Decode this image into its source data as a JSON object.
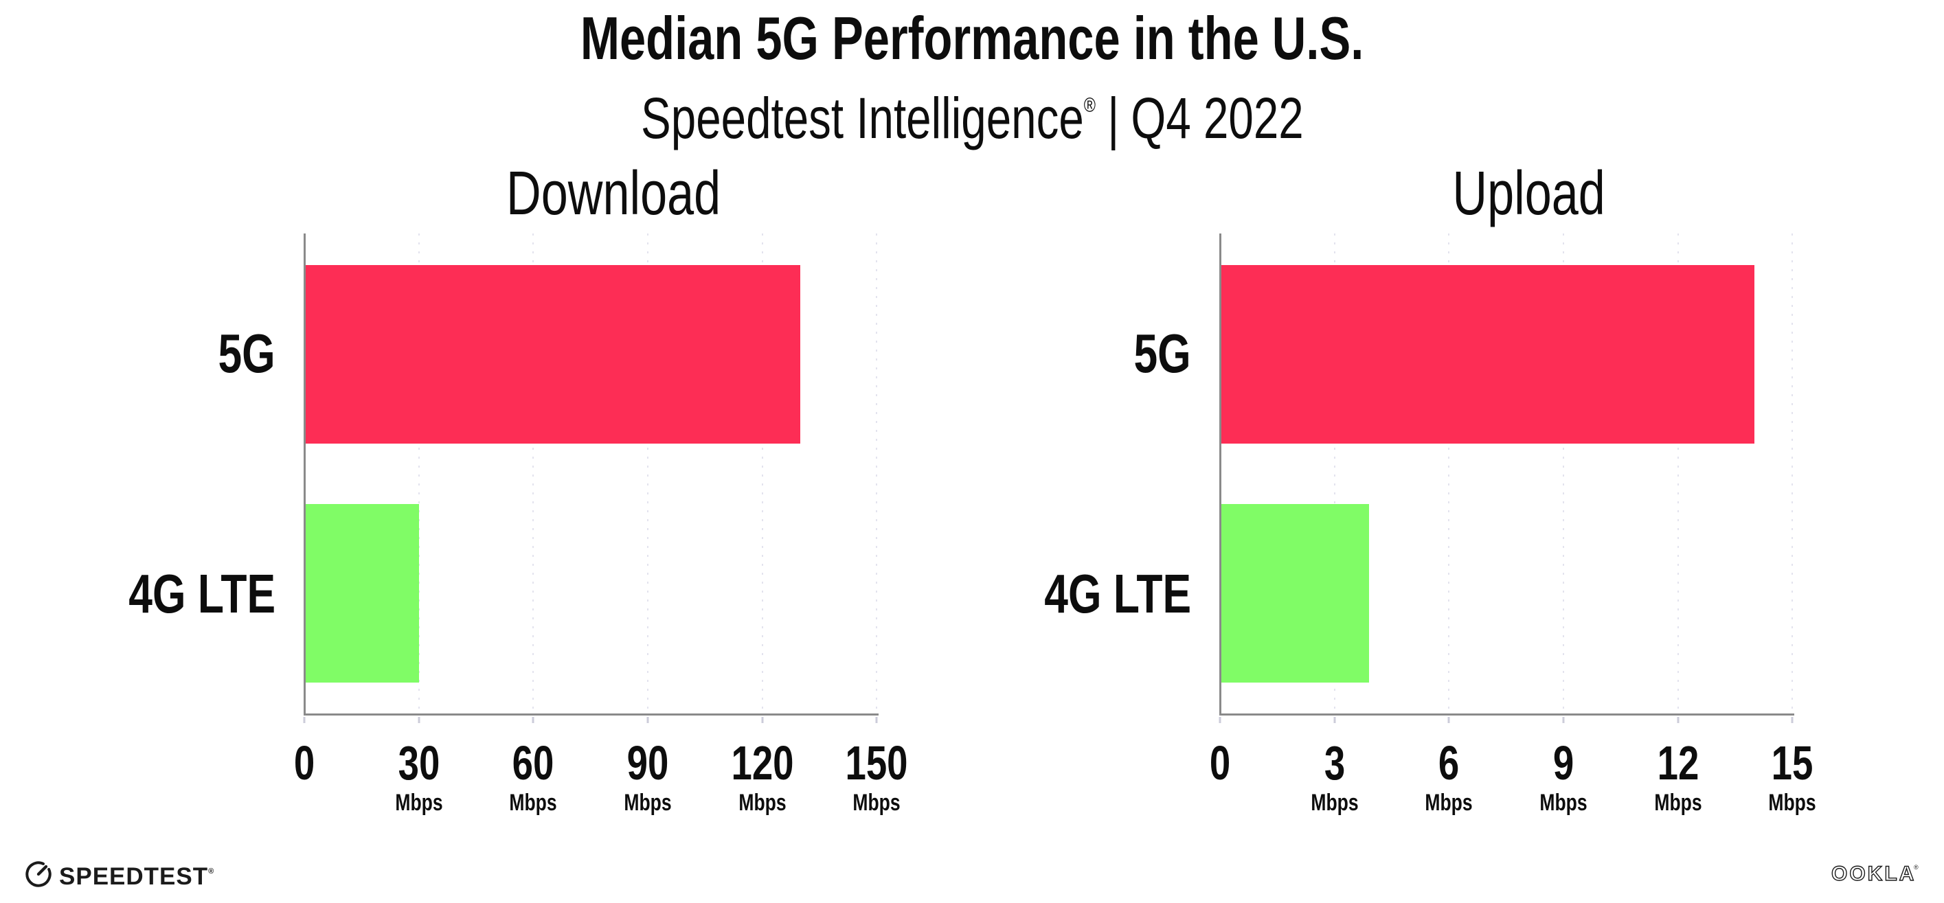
{
  "header": {
    "title": "Median 5G Performance in the U.S.",
    "subtitle_product": "Speedtest Intelligence",
    "subtitle_reg": "®",
    "subtitle_separator": "|",
    "subtitle_period": "Q4 2022"
  },
  "chart_data": [
    {
      "type": "bar",
      "orientation": "horizontal",
      "title": "Download",
      "categories": [
        "5G",
        "4G LTE"
      ],
      "values": [
        130,
        30
      ],
      "unit": "Mbps",
      "ticks": [
        0,
        30,
        60,
        90,
        120,
        150
      ],
      "tick_unit_suffix": "Mbps",
      "xlim": [
        0,
        162
      ],
      "grid": "dotted-vertical",
      "legend": "none",
      "bar_colors": [
        "#fd2d55",
        "#80fc66"
      ]
    },
    {
      "type": "bar",
      "orientation": "horizontal",
      "title": "Upload",
      "categories": [
        "5G",
        "4G LTE"
      ],
      "values": [
        14,
        3.9
      ],
      "unit": "Mbps",
      "ticks": [
        0,
        3,
        6,
        9,
        12,
        15
      ],
      "tick_unit_suffix": "Mbps",
      "xlim": [
        0,
        16.2
      ],
      "grid": "dotted-vertical",
      "legend": "none",
      "bar_colors": [
        "#fd2d55",
        "#80fc66"
      ]
    }
  ],
  "colors": {
    "bar_5g": "#fd2d55",
    "bar_4g_lte": "#80fc66",
    "axis": "#8a8a8a",
    "gridline": "#e3e3ee",
    "tick": "#ccccda",
    "text": "#0d0d0d"
  },
  "footer": {
    "speedtest_label": "SPEEDTEST",
    "speedtest_trademark": "®",
    "ookla_label": "OOKLA",
    "ookla_trademark": "®"
  }
}
